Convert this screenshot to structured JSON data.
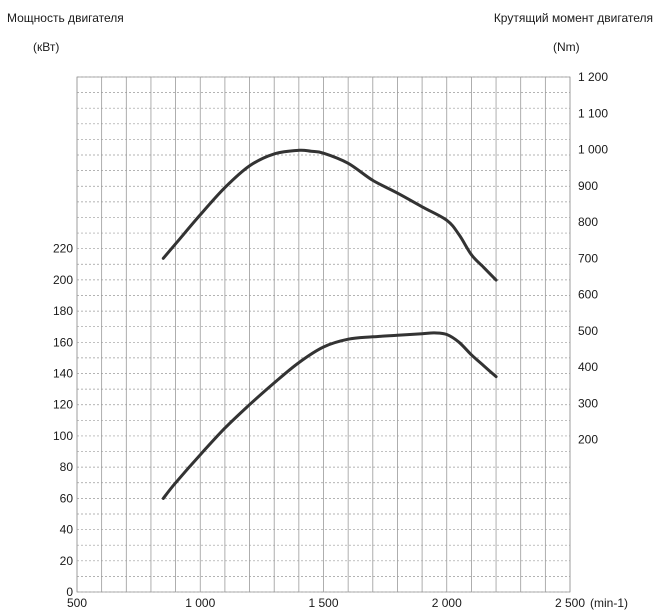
{
  "chart_data": {
    "type": "line",
    "left_axis_title": "Мощность двигателя",
    "left_axis_unit": "(кВт)",
    "right_axis_title": "Крутящий момент двигателя",
    "right_axis_unit": "(Nm)",
    "x_unit": "(min-1)",
    "x_ticks": [
      {
        "value": 500,
        "label": "500"
      },
      {
        "value": 1000,
        "label": "1 000"
      },
      {
        "value": 1500,
        "label": "1 500"
      },
      {
        "value": 2000,
        "label": "2 000"
      },
      {
        "value": 2500,
        "label": "2 500"
      }
    ],
    "left_ticks": [
      0,
      20,
      40,
      60,
      80,
      100,
      120,
      140,
      160,
      180,
      200,
      220
    ],
    "right_ticks": [
      {
        "value": 200,
        "label": "200"
      },
      {
        "value": 300,
        "label": "300"
      },
      {
        "value": 400,
        "label": "400"
      },
      {
        "value": 500,
        "label": "500"
      },
      {
        "value": 600,
        "label": "600"
      },
      {
        "value": 700,
        "label": "700"
      },
      {
        "value": 800,
        "label": "800"
      },
      {
        "value": 900,
        "label": "900"
      },
      {
        "value": 1000,
        "label": "1 000"
      },
      {
        "value": 1100,
        "label": "1 100"
      },
      {
        "value": 1200,
        "label": "1 200"
      }
    ],
    "xlim": [
      500,
      2500
    ],
    "left_ylim": [
      0,
      330
    ],
    "right_ylim": [
      -220,
      1200
    ],
    "grid": true,
    "line_color": "#333333",
    "series": [
      {
        "axis": "left",
        "x": [
          850,
          900,
          1000,
          1100,
          1200,
          1300,
          1400,
          1500,
          1600,
          1700,
          1800,
          1900,
          1950,
          2000,
          2050,
          2100,
          2150,
          2200
        ],
        "y": [
          60,
          70,
          88,
          105,
          120,
          134,
          147,
          157,
          162,
          163.5,
          164.5,
          165.5,
          166,
          165,
          160,
          152,
          145,
          138
        ]
      },
      {
        "axis": "right",
        "x": [
          850,
          900,
          1000,
          1100,
          1200,
          1300,
          1400,
          1450,
          1500,
          1600,
          1700,
          1800,
          1900,
          2000,
          2050,
          2100,
          2150,
          2200
        ],
        "y": [
          700,
          740,
          820,
          895,
          955,
          988,
          998,
          995,
          990,
          962,
          915,
          880,
          842,
          805,
          765,
          710,
          675,
          640
        ]
      }
    ]
  }
}
